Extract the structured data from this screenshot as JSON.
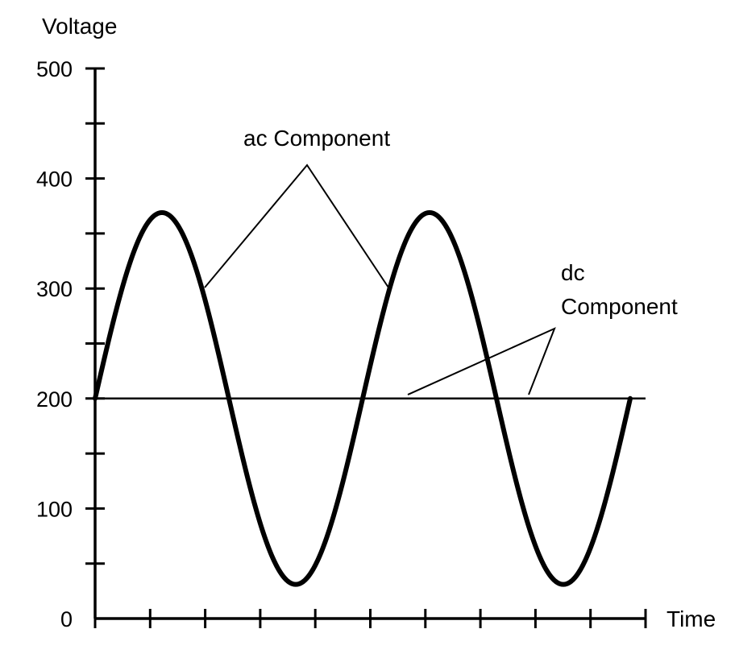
{
  "chart_data": {
    "type": "line",
    "ylabel": "Voltage",
    "xlabel": "Time",
    "ylim": [
      0,
      500
    ],
    "y_ticks": [
      0,
      100,
      200,
      300,
      400,
      500
    ],
    "y_tick_labels": [
      "0",
      "100",
      "200",
      "300",
      "400",
      "500"
    ],
    "y_minor_step": 50,
    "x_tick_count": 10,
    "grid": false,
    "series": [
      {
        "kind": "sine",
        "offset": 200,
        "amplitude": 169,
        "cycles": 2,
        "stroke": "#000000"
      },
      {
        "kind": "constant",
        "value": 200,
        "stroke": "#000000"
      }
    ],
    "annotations": [
      {
        "text": [
          "ac Component"
        ]
      },
      {
        "text": [
          "dc",
          "Component"
        ]
      }
    ]
  }
}
